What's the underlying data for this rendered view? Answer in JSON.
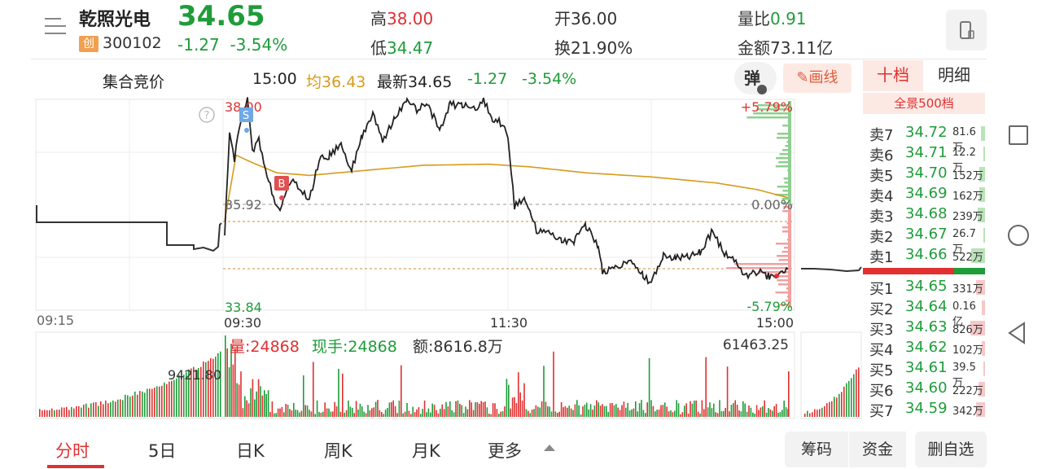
{
  "header": {
    "stock_name": "乾照光电",
    "board_badge": "创",
    "stock_code": "300102",
    "price": "34.65",
    "change": "-1.27",
    "change_pct": "-3.54%",
    "high_label": "高",
    "high_value": "38.00",
    "low_label": "低",
    "low_value": "34.47",
    "open_label": "开",
    "open_value": "36.00",
    "turnover_label": "换",
    "turnover_value": "21.90%",
    "vol_ratio_label": "量比",
    "vol_ratio_value": "0.91",
    "amount_label": "金额",
    "amount_value": "73.11亿"
  },
  "info_bar": {
    "auction_label": "集合竞价",
    "time": "15:00",
    "avg_label": "均36.43",
    "latest_label": "最新34.65",
    "change": "-1.27",
    "change_pct": "-3.54%",
    "tan_button": "弹",
    "draw_button": "画线"
  },
  "chart": {
    "upper_price": "38.00",
    "prev_close": "35.92",
    "lower_price": "33.84",
    "upper_pct": "+5.79%",
    "zero_pct": "0.00%",
    "lower_pct": "-5.79%",
    "time_labels": [
      "09:15",
      "09:30",
      "11:30",
      "15:00"
    ],
    "sell_marker": "S",
    "buy_marker": "B",
    "help_icon": "?",
    "volume_info": {
      "vol": "量:24868",
      "hand": "现手:24868",
      "amount": "额:8616.8万",
      "max_vol": "61463.25",
      "auction_vol": "9421.80"
    }
  },
  "order_book": {
    "tab_ten": "十档",
    "tab_detail": "明细",
    "full_depth": "全景500档",
    "sells": [
      {
        "label": "卖7",
        "price": "34.72",
        "vol": "81.6万",
        "w": 0.16
      },
      {
        "label": "卖6",
        "price": "34.71",
        "vol": "12.2万",
        "w": 0.05
      },
      {
        "label": "卖5",
        "price": "34.70",
        "vol": "152万",
        "w": 0.22
      },
      {
        "label": "卖4",
        "price": "34.69",
        "vol": "162万",
        "w": 0.24
      },
      {
        "label": "卖3",
        "price": "34.68",
        "vol": "239万",
        "w": 0.3
      },
      {
        "label": "卖2",
        "price": "34.67",
        "vol": "26.7万",
        "w": 0.06
      },
      {
        "label": "卖1",
        "price": "34.66",
        "vol": "522万",
        "w": 0.55
      }
    ],
    "buys": [
      {
        "label": "买1",
        "price": "34.65",
        "vol": "331万",
        "w": 0.35
      },
      {
        "label": "买2",
        "price": "34.64",
        "vol": "0.16亿",
        "w": 0.12
      },
      {
        "label": "买3",
        "price": "34.63",
        "vol": "826万",
        "w": 0.6
      },
      {
        "label": "买4",
        "price": "34.62",
        "vol": "102万",
        "w": 0.14
      },
      {
        "label": "买5",
        "price": "34.61",
        "vol": "39.5万",
        "w": 0.07
      },
      {
        "label": "买6",
        "price": "34.60",
        "vol": "222万",
        "w": 0.28
      },
      {
        "label": "买7",
        "price": "34.59",
        "vol": "342万",
        "w": 0.36
      }
    ]
  },
  "bottom_tabs": [
    "分时",
    "5日",
    "日K",
    "周K",
    "月K",
    "更多"
  ],
  "bottom_buttons": [
    "筹码",
    "资金",
    "删自选"
  ],
  "colors": {
    "up": "#e03030",
    "down": "#1f9c3a",
    "avg": "#d79b1d"
  }
}
